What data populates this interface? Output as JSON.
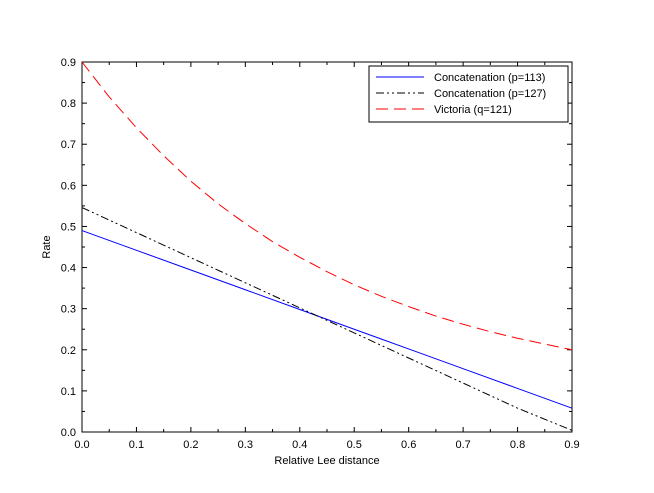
{
  "chart_data": {
    "type": "line",
    "title": "",
    "xlabel": "Relative Lee distance",
    "ylabel": "Rate",
    "xlim": [
      0,
      0.9
    ],
    "ylim": [
      0,
      0.9
    ],
    "x_ticks": [
      "0.0",
      "0.1",
      "0.2",
      "0.3",
      "0.4",
      "0.5",
      "0.6",
      "0.7",
      "0.8",
      "0.9"
    ],
    "y_ticks": [
      "0.0",
      "0.1",
      "0.2",
      "0.3",
      "0.4",
      "0.5",
      "0.6",
      "0.7",
      "0.8",
      "0.9"
    ],
    "grid": false,
    "legend_position": "top-right",
    "series": [
      {
        "name": "Concatenation (p=113)",
        "color": "#0000ff",
        "style": "solid",
        "x": [
          0.0,
          0.1,
          0.2,
          0.3,
          0.4,
          0.5,
          0.6,
          0.7,
          0.8,
          0.9
        ],
        "values": [
          0.49,
          0.442,
          0.394,
          0.346,
          0.298,
          0.25,
          0.202,
          0.154,
          0.106,
          0.058
        ]
      },
      {
        "name": "Concatenation (p=127)",
        "color": "#000000",
        "style": "dashdot",
        "x": [
          0.0,
          0.1,
          0.2,
          0.3,
          0.4,
          0.5,
          0.6,
          0.7,
          0.8,
          0.9
        ],
        "values": [
          0.546,
          0.485,
          0.424,
          0.363,
          0.302,
          0.241,
          0.18,
          0.119,
          0.058,
          0.004
        ]
      },
      {
        "name": "Victoria (q=121)",
        "color": "#ff0000",
        "style": "dashed",
        "x": [
          0.0,
          0.05,
          0.1,
          0.15,
          0.2,
          0.25,
          0.3,
          0.35,
          0.4,
          0.45,
          0.5,
          0.55,
          0.6,
          0.65,
          0.7,
          0.75,
          0.8,
          0.85,
          0.9
        ],
        "values": [
          0.9,
          0.815,
          0.74,
          0.672,
          0.61,
          0.555,
          0.507,
          0.463,
          0.425,
          0.39,
          0.358,
          0.33,
          0.305,
          0.282,
          0.262,
          0.244,
          0.228,
          0.214,
          0.2
        ]
      }
    ]
  }
}
